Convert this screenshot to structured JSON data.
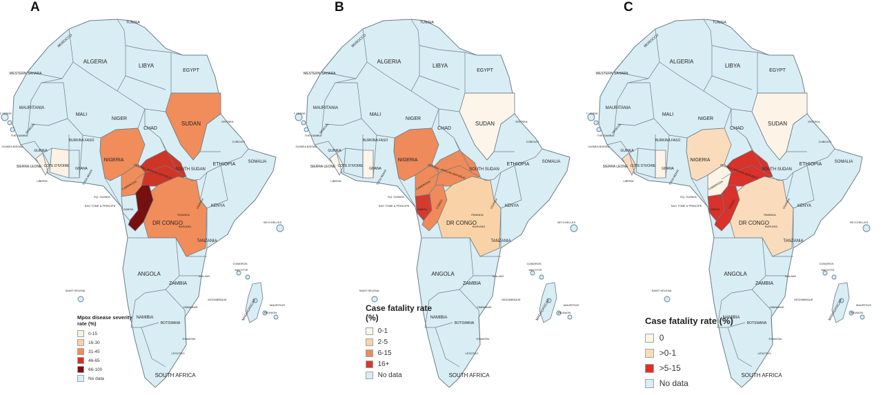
{
  "colors": {
    "nodata": "#d9edf5",
    "border": "#6b7c86",
    "island": "#5b7f99",
    "a_0_15": "#fbf1e4",
    "a_16_30": "#f9cfa3",
    "a_31_45": "#f08d5b",
    "a_46_65": "#cf3527",
    "a_66_100": "#7a0f0f",
    "b_0_1": "#fdf4ea",
    "b_2_5": "#f9d3a7",
    "b_6_15": "#ef8a5a",
    "b_16p": "#d23b2d",
    "c_0": "#fdf3e7",
    "c_0_1": "#fadcbc",
    "c_5_15": "#d8322a"
  },
  "panels": [
    {
      "letter": "A",
      "legend": {
        "title": "Mpox disease severity rate (%)",
        "items": [
          {
            "label": "0-15",
            "color": "#fbf1e4"
          },
          {
            "label": "16-30",
            "color": "#f9cfa3"
          },
          {
            "label": "31-45",
            "color": "#f08d5b"
          },
          {
            "label": "46-65",
            "color": "#cf3527"
          },
          {
            "label": "66-100",
            "color": "#7a0f0f"
          },
          {
            "label": "No data",
            "color": "#d9edf5"
          }
        ]
      },
      "fills": {
        "sudan": "#f08d5b",
        "nigeria": "#f08d5b",
        "car": "#cf3527",
        "drc": "#f08d5b",
        "congo": "#7a0f0f",
        "gabon": "#d9edf5",
        "cameroon": "#f08d5b",
        "liberia": "#fbf1e4",
        "cotedivoire": "#fbf1e4",
        "ghana": "#d9edf5"
      }
    },
    {
      "letter": "B",
      "legend": {
        "title": "Case fatality rate (%)",
        "items": [
          {
            "label": "0-1",
            "color": "#fdf4ea"
          },
          {
            "label": "2-5",
            "color": "#f9d3a7"
          },
          {
            "label": "6-15",
            "color": "#ef8a5a"
          },
          {
            "label": "16+",
            "color": "#d23b2d"
          },
          {
            "label": "No data",
            "color": "#d9edf5"
          }
        ]
      },
      "fills": {
        "sudan": "#fdf4ea",
        "nigeria": "#ef8a5a",
        "car": "#ef8a5a",
        "drc": "#f9d3a7",
        "congo": "#ef8a5a",
        "gabon": "#d23b2d",
        "cameroon": "#ef8a5a",
        "liberia": "#fdf4ea",
        "cotedivoire": "#d9edf5",
        "ghana": "#fdf4ea"
      }
    },
    {
      "letter": "C",
      "legend": {
        "title": "Case fatality rate (%)",
        "items": [
          {
            "label": "0",
            "color": "#fdf3e7"
          },
          {
            "label": ">0-1",
            "color": "#fadcbc"
          },
          {
            "label": ">5-15",
            "color": "#d8322a"
          },
          {
            "label": "No data",
            "color": "#d9edf5"
          }
        ]
      },
      "fills": {
        "sudan": "#fdf3e7",
        "nigeria": "#fadcbc",
        "car": "#d8322a",
        "drc": "#fadcbc",
        "congo": "#d8322a",
        "gabon": "#d8322a",
        "cameroon": "#fdf3e7",
        "liberia": "#fadcbc",
        "cotedivoire": "#d9edf5",
        "ghana": "#fdf3e7"
      }
    }
  ],
  "labels": {
    "tunisia": "TUNISIA",
    "morocco": "MOROCCO",
    "algeria": "ALGERIA",
    "libya": "LIBYA",
    "egypt": "EGYPT",
    "western_sahara": "WESTERN SAHARA",
    "mauritania": "MAURITANIA",
    "mali": "MALI",
    "niger": "NIGER",
    "chad": "CHAD",
    "sudan": "SUDAN",
    "eritrea": "ERITREA",
    "cape_verde": "CAPE VERDE",
    "senegal": "SENEGAL",
    "the_gambia": "THE GAMBIA",
    "guinea_bissau": "GUINEA BISSAU",
    "guinea": "GUINEA",
    "burkina_faso": "BURKINA FASO",
    "djibouti": "DJIBOUTI",
    "sierra_leone": "SIERRA LEONE",
    "cote_divoire": "COTE D'IVOIRE",
    "ghana": "GHANA",
    "togo_benin": "TOGO BENIN",
    "nigeria": "NIGERIA",
    "car": "CENTRAL AFRICAN REPUBLIC",
    "south_sudan": "SOUTH SUDAN",
    "ethiopia": "ETHIOPIA",
    "somalia": "SOMALIA",
    "liberia": "LIBERIA",
    "cameroon": "CAMEROON",
    "eq_guinea": "EQ. GUINEA",
    "sao_tome": "SAO TOME & PRINCIPE",
    "gabon": "GABON",
    "congo": "CONGO",
    "uganda": "UGANDA",
    "kenya": "KENYA",
    "rwanda": "RWANDA",
    "burundi": "BURUNDI",
    "dr_congo": "DR CONGO",
    "tanzania": "TANZANIA",
    "seychelles": "SEYCHELLES",
    "comoros": "COMOROS",
    "mayotte": "MAYOTTE",
    "angola": "ANGOLA",
    "zambia": "ZAMBIA",
    "malawi": "MALAWI",
    "saint_helena": "SAINT HELENA",
    "mozambique": "MOZAMBIQUE",
    "zimbabwe": "ZIMBABWE",
    "namibia": "NAMIBIA",
    "botswana": "BOTSWANA",
    "madagascar": "MADAGASCAR",
    "mauritius": "MAURITIUS",
    "reunion": "REUNION",
    "eswatini": "ESWATINI",
    "lesotho": "LESOTHO",
    "south_africa": "SOUTH AFRICA"
  }
}
